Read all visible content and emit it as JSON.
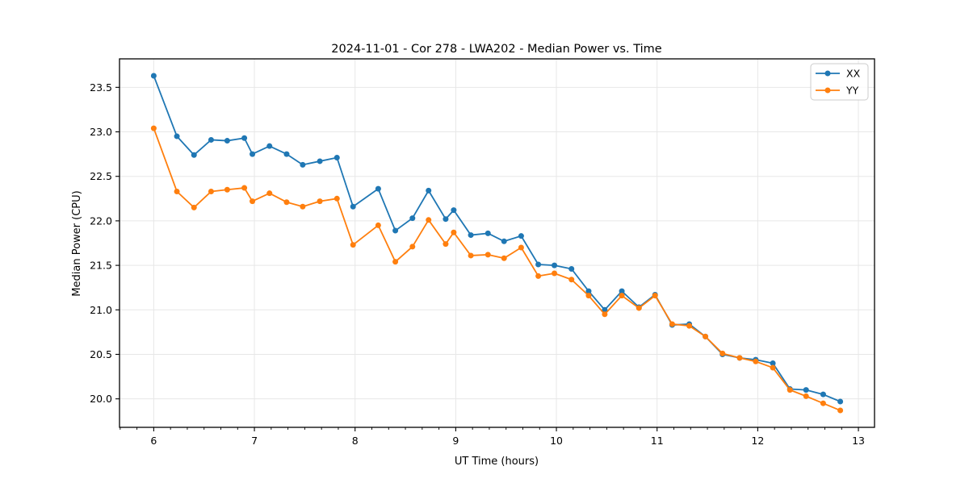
{
  "accent_colors": {
    "series_xx": "#1f77b4",
    "series_yy": "#ff7f0e",
    "grid": "#e7e7e7",
    "frame": "#000000",
    "legend_border": "#cccccc",
    "background": "#ffffff"
  },
  "chart_data": {
    "type": "line",
    "title": "2024-11-01 - Cor 278 - LWA202 - Median Power vs. Time",
    "xlabel": "UT Time (hours)",
    "ylabel": "Median Power (CPU)",
    "xlim": [
      5.66,
      13.16
    ],
    "ylim": [
      19.68,
      23.82
    ],
    "xticks": [
      6,
      7,
      8,
      9,
      10,
      11,
      12,
      13
    ],
    "yticks": [
      20.0,
      20.5,
      21.0,
      21.5,
      22.0,
      22.5,
      23.0,
      23.5
    ],
    "x_minor_step": 0.166667,
    "grid": true,
    "legend_position": "upper right",
    "legend_entries": [
      "XX",
      "YY"
    ],
    "x": [
      6.0,
      6.23,
      6.4,
      6.57,
      6.73,
      6.9,
      6.98,
      7.15,
      7.32,
      7.48,
      7.65,
      7.82,
      7.98,
      8.23,
      8.4,
      8.57,
      8.73,
      8.9,
      8.98,
      9.15,
      9.32,
      9.48,
      9.65,
      9.82,
      9.98,
      10.15,
      10.32,
      10.48,
      10.65,
      10.82,
      10.98,
      11.15,
      11.32,
      11.48,
      11.65,
      11.82,
      11.98,
      12.15,
      12.32,
      12.48,
      12.65,
      12.82
    ],
    "series": [
      {
        "name": "XX",
        "color": "#1f77b4",
        "values": [
          23.63,
          22.95,
          22.74,
          22.91,
          22.9,
          22.93,
          22.75,
          22.84,
          22.75,
          22.63,
          22.67,
          22.71,
          22.16,
          22.36,
          21.89,
          22.03,
          22.34,
          22.02,
          22.12,
          21.84,
          21.86,
          21.77,
          21.83,
          21.51,
          21.5,
          21.46,
          21.21,
          21.0,
          21.21,
          21.03,
          21.17,
          20.83,
          20.84,
          20.7,
          20.5,
          20.46,
          20.44,
          20.4,
          20.11,
          20.1,
          20.05,
          19.97
        ]
      },
      {
        "name": "YY",
        "color": "#ff7f0e",
        "values": [
          23.04,
          22.33,
          22.15,
          22.33,
          22.35,
          22.37,
          22.22,
          22.31,
          22.21,
          22.16,
          22.22,
          22.25,
          21.73,
          21.95,
          21.54,
          21.71,
          22.01,
          21.74,
          21.87,
          21.61,
          21.62,
          21.58,
          21.7,
          21.38,
          21.41,
          21.34,
          21.16,
          20.95,
          21.16,
          21.02,
          21.16,
          20.84,
          20.82,
          20.7,
          20.51,
          20.46,
          20.42,
          20.35,
          20.1,
          20.03,
          19.95,
          19.87
        ]
      }
    ]
  }
}
